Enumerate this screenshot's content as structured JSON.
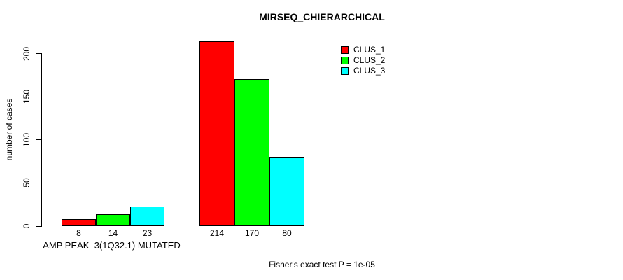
{
  "chart_data": {
    "type": "bar",
    "title": "MIRSEQ_CHIERARCHICAL",
    "ylabel": "number of cases",
    "xlabel": "",
    "ylim": [
      0,
      200
    ],
    "yticks": [
      0,
      50,
      100,
      150,
      200
    ],
    "grid": false,
    "legend_position": "top-right",
    "bar_border_color": "#000000",
    "legend": {
      "entries": [
        {
          "label": "CLUS_1",
          "color": "#ff0000"
        },
        {
          "label": "CLUS_2",
          "color": "#00ff00"
        },
        {
          "label": "CLUS_3",
          "color": "#00ffff"
        }
      ]
    },
    "groups": [
      {
        "label": "AMP PEAK  3(1Q32.1) MUTATED",
        "bars": [
          {
            "series": "CLUS_1",
            "value": 8,
            "value_label": "8"
          },
          {
            "series": "CLUS_2",
            "value": 14,
            "value_label": "14"
          },
          {
            "series": "CLUS_3",
            "value": 23,
            "value_label": "23"
          }
        ]
      },
      {
        "label": "",
        "bars": [
          {
            "series": "CLUS_1",
            "value": 214,
            "value_label": "214"
          },
          {
            "series": "CLUS_2",
            "value": 170,
            "value_label": "170"
          },
          {
            "series": "CLUS_3",
            "value": 80,
            "value_label": "80"
          }
        ]
      }
    ],
    "footnote": "Fisher's exact test P = 1e-05"
  }
}
